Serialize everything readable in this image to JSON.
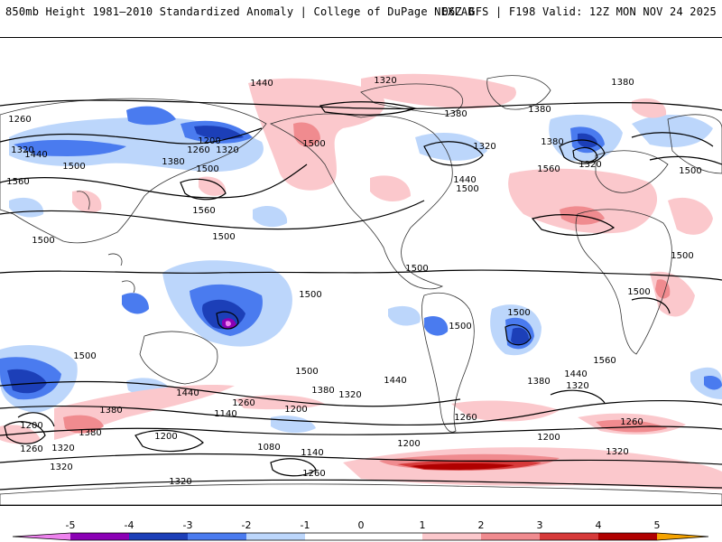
{
  "header": {
    "left_title": "850mb Height 1981–2010 Standardized Anomaly | College of DuPage NEXLAB",
    "right_title": "06Z GFS | F198 Valid: 12Z MON NOV 24 2025"
  },
  "colors": {
    "neg5": "#ee82ee",
    "neg4": "#8b00b5",
    "neg3": "#1c3fb8",
    "neg2": "#4a7bef",
    "neg1": "#bcd6fb",
    "pos1": "#fbc8cc",
    "pos2": "#f08b8f",
    "pos3": "#d63a3a",
    "pos4": "#b00000",
    "pos5": "#f5a300"
  },
  "map": {
    "contour_labels": [
      "1440",
      "1320",
      "1380",
      "1380",
      "1260",
      "1320",
      "1200",
      "1260",
      "1320",
      "1440",
      "1380",
      "1500",
      "1500",
      "1560",
      "1560",
      "1500",
      "1380",
      "1320",
      "1440",
      "1500",
      "1500",
      "1560",
      "1380",
      "1320",
      "1500",
      "1500",
      "1500",
      "1500",
      "1500",
      "1500",
      "1500",
      "1500",
      "1500",
      "1560",
      "1380",
      "1440",
      "1440",
      "1320",
      "1440",
      "1500",
      "1380",
      "1320",
      "1260",
      "1140",
      "1200",
      "1200",
      "1080",
      "1140",
      "1200",
      "1260",
      "1200",
      "1260",
      "1320",
      "1200",
      "1320",
      "1380",
      "1380",
      "1260",
      "1320",
      "1260",
      "1320"
    ]
  },
  "colorbar": {
    "ticks": [
      "-5",
      "-4",
      "-3",
      "-2",
      "-1",
      "0",
      "1",
      "2",
      "3",
      "4",
      "5"
    ]
  }
}
